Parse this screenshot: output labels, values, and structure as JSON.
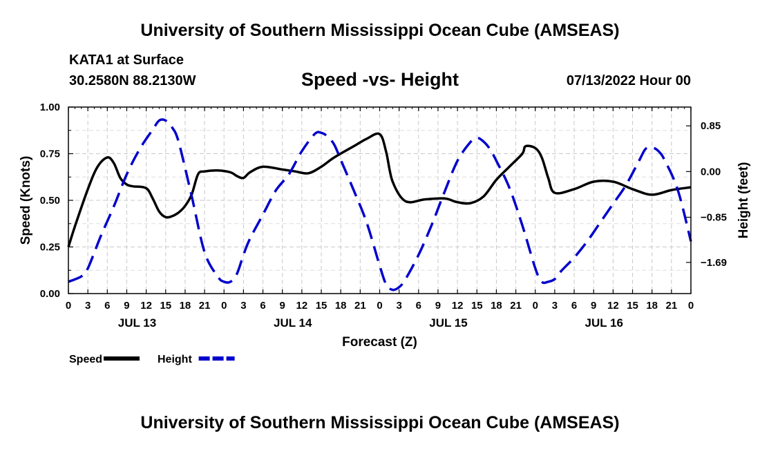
{
  "header": {
    "title": "University of Southern Mississippi Ocean Cube (AMSEAS)",
    "station": "KATA1 at Surface",
    "coords": "30.2580N  88.2130W",
    "subtitle": "Speed -vs- Height",
    "datetime": "07/13/2022 Hour 00",
    "footer_title": "University of Southern Mississippi Ocean Cube (AMSEAS)"
  },
  "chart_data": {
    "type": "line",
    "title": "Speed -vs- Height",
    "xlabel": "Forecast (Z)",
    "ylabel": "Speed (Knots)",
    "y2label": "Height (feet)",
    "x_range_hours": [
      0,
      96
    ],
    "x_tick_step_hours": 3,
    "x_tick_labels": [
      "0",
      "3",
      "6",
      "9",
      "12",
      "15",
      "18",
      "21",
      "0",
      "3",
      "6",
      "9",
      "12",
      "15",
      "18",
      "21",
      "0",
      "3",
      "6",
      "9",
      "12",
      "15",
      "18",
      "21",
      "0",
      "3",
      "6",
      "9",
      "12",
      "15",
      "18",
      "21",
      "0"
    ],
    "date_labels": [
      {
        "label": "JUL 13",
        "hour": 9
      },
      {
        "label": "JUL 14",
        "hour": 33
      },
      {
        "label": "JUL 15",
        "hour": 57
      },
      {
        "label": "JUL 16",
        "hour": 81
      }
    ],
    "ylim": [
      0,
      1
    ],
    "y_ticks": [
      0,
      0.25,
      0.5,
      0.75,
      1.0
    ],
    "y_tick_labels": [
      "0.00",
      "0.25",
      "0.50",
      "0.75",
      "1.00"
    ],
    "y2lim": [
      -2.27,
      1.2
    ],
    "y2_ticks": [
      0.85,
      0.0,
      -0.85,
      -1.69
    ],
    "y2_tick_labels": [
      "0.85",
      "0.00",
      "−0.85",
      "−1.69"
    ],
    "series": [
      {
        "name": "Speed",
        "axis": "left",
        "color": "#000000",
        "style": "solid",
        "x": [
          0,
          1,
          3,
          4.5,
          6,
          7,
          8,
          9,
          10,
          12,
          13,
          14,
          15,
          16,
          17,
          18,
          19,
          20,
          21,
          23,
          25,
          26,
          27,
          28,
          30,
          33,
          35,
          37,
          39,
          41,
          44,
          46,
          48,
          49,
          50,
          52,
          55,
          58,
          60,
          62,
          64,
          66,
          68,
          70,
          70.5,
          72,
          73,
          74,
          75,
          78,
          81,
          84,
          87,
          90,
          93,
          96
        ],
        "values": [
          0.25,
          0.36,
          0.56,
          0.68,
          0.73,
          0.7,
          0.62,
          0.585,
          0.575,
          0.565,
          0.51,
          0.44,
          0.41,
          0.415,
          0.435,
          0.47,
          0.53,
          0.64,
          0.655,
          0.66,
          0.65,
          0.63,
          0.62,
          0.65,
          0.68,
          0.665,
          0.655,
          0.645,
          0.68,
          0.73,
          0.79,
          0.83,
          0.855,
          0.76,
          0.6,
          0.495,
          0.505,
          0.51,
          0.49,
          0.485,
          0.52,
          0.61,
          0.68,
          0.75,
          0.79,
          0.78,
          0.73,
          0.62,
          0.54,
          0.56,
          0.6,
          0.6,
          0.56,
          0.53,
          0.555,
          0.57
        ]
      },
      {
        "name": "Height",
        "axis": "right",
        "color": "#0000cc",
        "style": "dashed",
        "x": [
          0,
          2,
          3,
          5,
          7,
          9,
          11,
          13,
          14,
          15,
          16,
          17,
          19,
          21,
          23,
          24,
          25,
          26,
          27,
          28,
          30,
          32,
          34,
          36,
          38,
          39,
          40,
          41,
          42,
          44,
          46,
          48,
          49,
          50,
          51,
          52,
          54,
          56,
          58,
          60,
          62,
          63,
          64,
          65,
          66,
          68,
          70,
          72,
          73,
          74,
          75,
          76,
          78,
          80,
          82,
          84,
          86,
          88,
          89,
          90,
          91,
          92,
          94,
          96
        ],
        "values": [
          -2.05,
          -1.95,
          -1.8,
          -1.2,
          -0.65,
          -0.05,
          0.42,
          0.78,
          0.95,
          0.95,
          0.82,
          0.55,
          -0.45,
          -1.5,
          -1.95,
          -2.05,
          -2.05,
          -1.9,
          -1.55,
          -1.25,
          -0.8,
          -0.35,
          -0.05,
          0.38,
          0.7,
          0.72,
          0.65,
          0.5,
          0.22,
          -0.35,
          -0.95,
          -1.75,
          -2.1,
          -2.2,
          -2.15,
          -2.0,
          -1.55,
          -1.0,
          -0.38,
          0.2,
          0.55,
          0.63,
          0.56,
          0.42,
          0.2,
          -0.3,
          -1.0,
          -1.8,
          -2.05,
          -2.05,
          -2.0,
          -1.85,
          -1.6,
          -1.3,
          -0.95,
          -0.6,
          -0.25,
          0.2,
          0.42,
          0.45,
          0.38,
          0.2,
          -0.35,
          -1.3
        ]
      }
    ],
    "legend": [
      {
        "label": "Speed",
        "style": "solid",
        "color": "#000000"
      },
      {
        "label": "Height",
        "style": "dashed",
        "color": "#0000cc"
      }
    ],
    "legend_position": "bottom-left",
    "grid": true
  }
}
